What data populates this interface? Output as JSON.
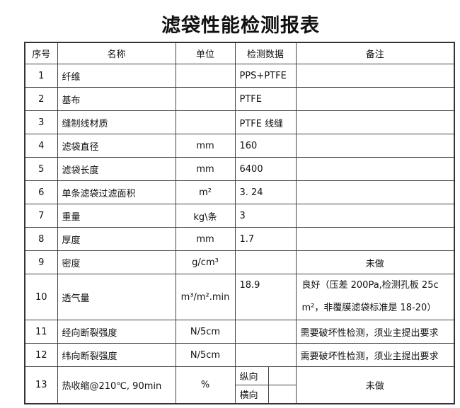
{
  "title": "滤袋性能检测报表",
  "headers": [
    "序号",
    "名称",
    "单位",
    "检测数据",
    "备注"
  ],
  "rows": [
    {
      "no": "1",
      "name": "纤维",
      "unit": "",
      "data": "PPS+PTFE",
      "note": ""
    },
    {
      "no": "2",
      "name": "基布",
      "unit": "",
      "data": "PTFE",
      "note": ""
    },
    {
      "no": "3",
      "name": "缝制线材质",
      "unit": "",
      "data": "PTFE 线缝",
      "note": ""
    },
    {
      "no": "4",
      "name": "滤袋直径",
      "unit": "mm",
      "data": "160",
      "note": ""
    },
    {
      "no": "5",
      "name": "滤袋长度",
      "unit": "mm",
      "data": "6400",
      "note": ""
    },
    {
      "no": "6",
      "name": "单条滤袋过滤面积",
      "unit": "m²",
      "data": "3. 24",
      "note": ""
    },
    {
      "no": "7",
      "name": "重量",
      "unit": "kg\\条",
      "data": "3",
      "note": ""
    },
    {
      "no": "8",
      "name": "厚度",
      "unit": "mm",
      "data": "1.7",
      "note": ""
    },
    {
      "no": "9",
      "name": "密度",
      "unit": "g/cm³",
      "data": "",
      "note": "未做"
    },
    {
      "no": "10",
      "name": "透气量",
      "unit": "m³/m².min",
      "data": "18.9",
      "note": "良好（压差 200Pa,检测孔板 25c m²，非覆膜滤袋标准是 18-20）"
    },
    {
      "no": "11",
      "name": "经向断裂强度",
      "unit": "N/5cm",
      "data": "",
      "note": "需要破坏性检测，须业主提出要求"
    },
    {
      "no": "12",
      "name": "纬向断裂强度",
      "unit": "N/5cm",
      "data": "",
      "note": "需要破坏性检测，须业主提出要求"
    },
    {
      "no": "13",
      "name": "热收缩@210℃, 90min",
      "unit": "%",
      "sub": [
        "纵向",
        "横向"
      ],
      "note": "未做"
    }
  ]
}
